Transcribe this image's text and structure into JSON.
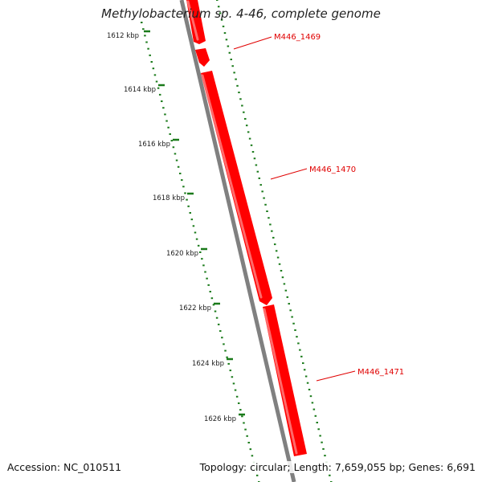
{
  "title": "Methylobacterium sp. 4-46, complete genome",
  "colors": {
    "backbone": "#808080",
    "cds": "#ff0000",
    "cds_highlight": "#ff6a6a",
    "tick": "#1a7a1a",
    "gene_label": "#e00000"
  },
  "scale_ticks": [
    {
      "label": "1612 kbp"
    },
    {
      "label": "1614 kbp"
    },
    {
      "label": "1616 kbp"
    },
    {
      "label": "1618 kbp"
    },
    {
      "label": "1620 kbp"
    },
    {
      "label": "1622 kbp"
    },
    {
      "label": "1624 kbp"
    },
    {
      "label": "1626 kbp"
    }
  ],
  "genes": [
    {
      "name": "M446_1469"
    },
    {
      "name": "M446_1470"
    },
    {
      "name": "M446_1471"
    }
  ],
  "footer": {
    "accession": "Accession: NC_010511",
    "summary": "Topology: circular; Length: 7,659,055 bp; Genes: 6,691"
  }
}
